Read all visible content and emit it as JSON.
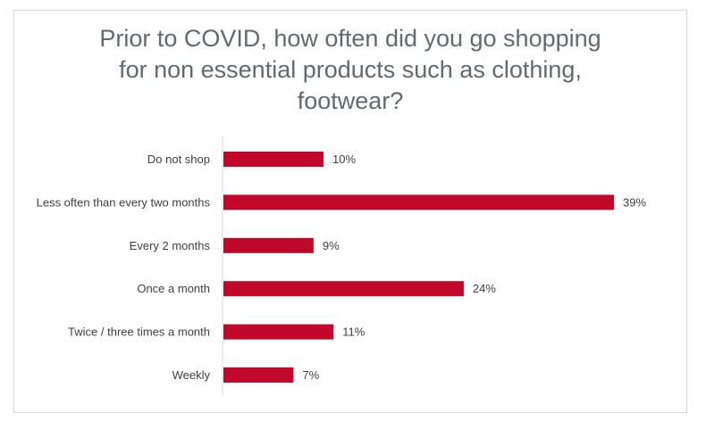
{
  "chart_data": {
    "type": "bar",
    "orientation": "horizontal",
    "title_lines": [
      "Prior to COVID, how often did you go shopping",
      "for non essential products such as clothing,",
      "footwear?"
    ],
    "categories": [
      "Do not shop",
      "Less often than every two months",
      "Every 2 months",
      "Once a month",
      "Twice / three times a month",
      "Weekly"
    ],
    "values": [
      10,
      39,
      9,
      24,
      11,
      7
    ],
    "value_labels": [
      "10%",
      "39%",
      "9%",
      "24%",
      "11%",
      "7%"
    ],
    "unit": "%",
    "xlim": [
      0,
      40
    ],
    "grid": false,
    "legend": "none",
    "bar_color": "#c0092a",
    "axis_color": "#d9d9d9"
  }
}
